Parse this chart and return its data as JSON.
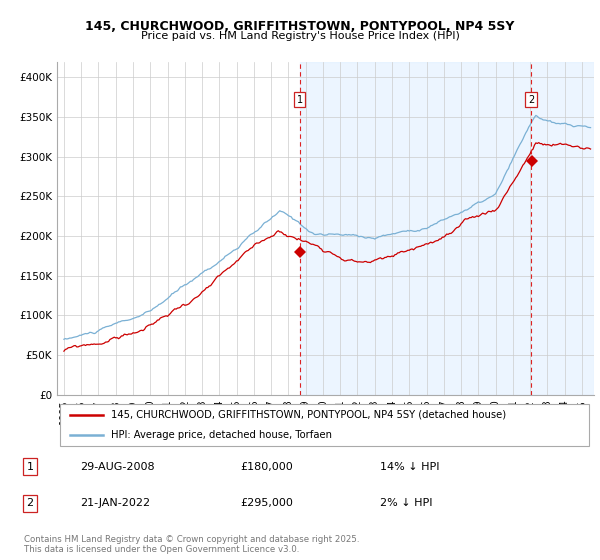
{
  "title_line1": "145, CHURCHWOOD, GRIFFITHSTOWN, PONTYPOOL, NP4 5SY",
  "title_line2": "Price paid vs. HM Land Registry's House Price Index (HPI)",
  "legend_label_red": "145, CHURCHWOOD, GRIFFITHSTOWN, PONTYPOOL, NP4 5SY (detached house)",
  "legend_label_blue": "HPI: Average price, detached house, Torfaen",
  "annotation1_label": "1",
  "annotation1_date": "29-AUG-2008",
  "annotation1_price": "£180,000",
  "annotation1_hpi": "14% ↓ HPI",
  "annotation2_label": "2",
  "annotation2_date": "21-JAN-2022",
  "annotation2_price": "£295,000",
  "annotation2_hpi": "2% ↓ HPI",
  "sale1_date_num": 2008.66,
  "sale1_price": 180000,
  "sale2_date_num": 2022.05,
  "sale2_price": 295000,
  "red_color": "#cc0000",
  "blue_color": "#7ab0d4",
  "blue_fill": "#ddeeff",
  "vline_color": "#dd2222",
  "grid_color": "#cccccc",
  "footer_text": "Contains HM Land Registry data © Crown copyright and database right 2025.\nThis data is licensed under the Open Government Licence v3.0.",
  "ylim": [
    0,
    420000
  ],
  "ytick_vals": [
    0,
    50000,
    100000,
    150000,
    200000,
    250000,
    300000,
    350000,
    400000
  ],
  "ytick_labels": [
    "£0",
    "£50K",
    "£100K",
    "£150K",
    "£200K",
    "£250K",
    "£300K",
    "£350K",
    "£400K"
  ],
  "xstart": 1995,
  "xend": 2025
}
